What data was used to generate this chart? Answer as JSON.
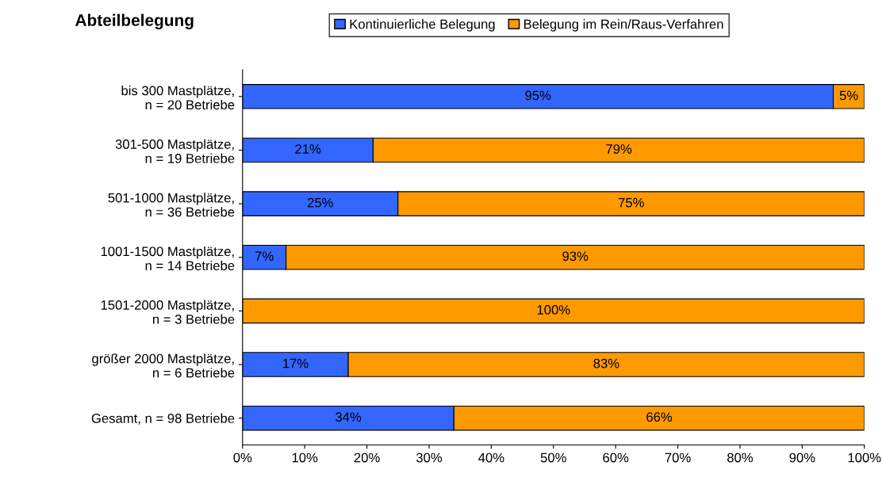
{
  "chart_data": {
    "type": "bar",
    "orientation": "horizontal",
    "stacked": true,
    "title": "Abteilbelegung",
    "categories": [
      "bis 300 Mastplätze,\nn = 20 Betriebe",
      "301-500 Mastplätze,\nn = 19 Betriebe",
      "501-1000 Mastplätze,\nn = 36 Betriebe",
      "1001-1500 Mastplätze,\nn = 14 Betriebe",
      "1501-2000 Mastplätze,\nn = 3 Betriebe",
      "größer 2000 Mastplätze,\nn = 6 Betriebe",
      "Gesamt, n = 98 Betriebe"
    ],
    "series": [
      {
        "name": "Kontinuierliche Belegung",
        "color": "#3366ff",
        "values": [
          95,
          21,
          25,
          7,
          0,
          17,
          34
        ],
        "value_labels": [
          "95%",
          "21%",
          "25%",
          "7%",
          null,
          "17%",
          "34%"
        ]
      },
      {
        "name": "Belegung im Rein/Raus-Verfahren",
        "color": "#ff9900",
        "values": [
          5,
          79,
          75,
          93,
          100,
          83,
          66
        ],
        "value_labels": [
          "5%",
          "79%",
          "75%",
          "93%",
          "100%",
          "83%",
          "66%"
        ]
      }
    ],
    "xlim": [
      0,
      100
    ],
    "xticks": [
      {
        "value": 0,
        "label": "0%"
      },
      {
        "value": 10,
        "label": "10%"
      },
      {
        "value": 20,
        "label": "20%"
      },
      {
        "value": 30,
        "label": "30%"
      },
      {
        "value": 40,
        "label": "40%"
      },
      {
        "value": 50,
        "label": "50%"
      },
      {
        "value": 60,
        "label": "60%"
      },
      {
        "value": 70,
        "label": "70%"
      },
      {
        "value": 80,
        "label": "80%"
      },
      {
        "value": 90,
        "label": "90%"
      },
      {
        "value": 100,
        "label": "100%"
      }
    ],
    "grid": false,
    "legend": "top"
  }
}
